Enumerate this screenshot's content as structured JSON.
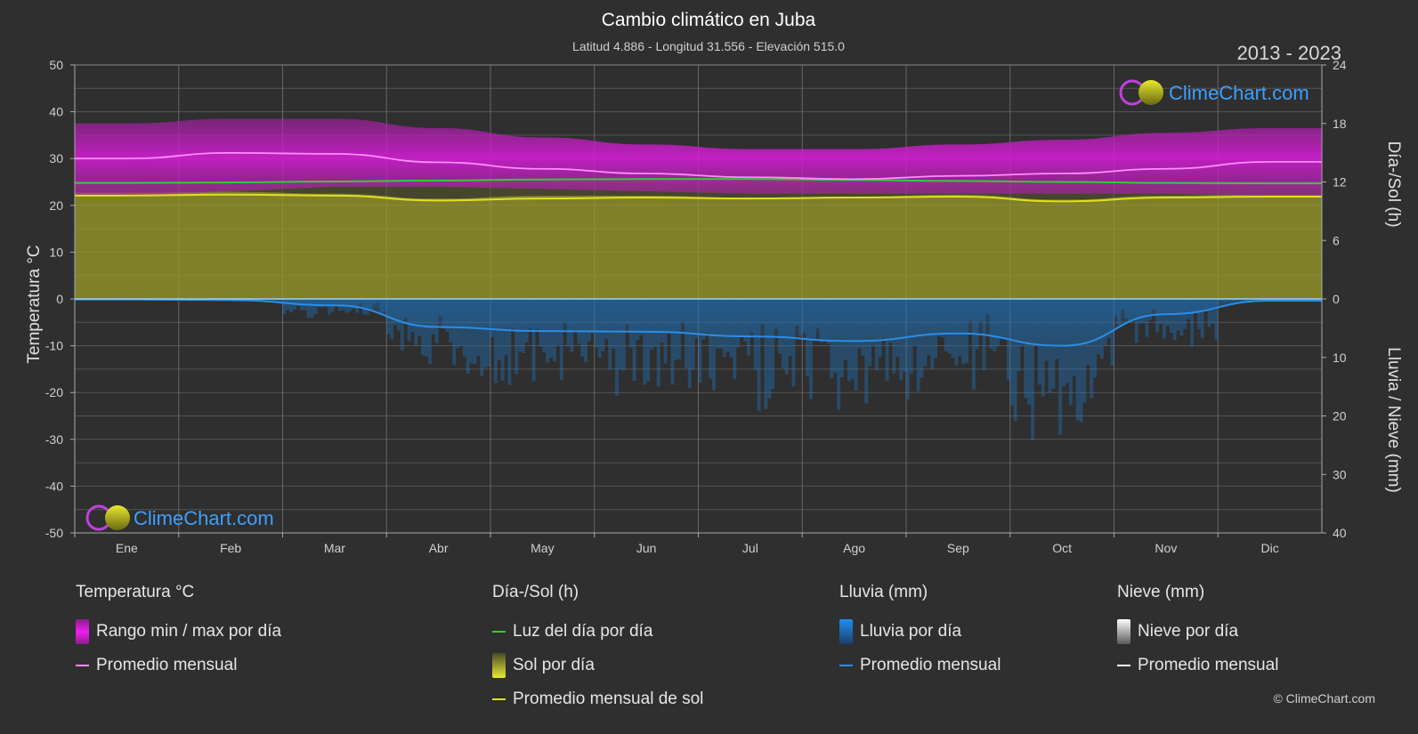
{
  "header": {
    "title": "Cambio climático en Juba",
    "subtitle": "Latitud 4.886 - Longitud 31.556 - Elevación 515.0",
    "year_range": "2013 - 2023"
  },
  "watermark": {
    "text": "ClimeChart.com"
  },
  "copyright": "© ClimeChart.com",
  "chart_data": {
    "type": "area",
    "months": [
      "Ene",
      "Feb",
      "Mar",
      "Abr",
      "May",
      "Jun",
      "Jul",
      "Ago",
      "Sep",
      "Oct",
      "Nov",
      "Dic"
    ],
    "left_axis": {
      "label": "Temperatura °C",
      "ticks": [
        50,
        40,
        30,
        20,
        10,
        0,
        -10,
        -20,
        -30,
        -40,
        -50
      ],
      "range": [
        -50,
        50
      ]
    },
    "right_axis_top": {
      "label": "Día-/Sol (h)",
      "ticks": [
        24,
        18,
        12,
        6,
        0
      ],
      "range": [
        0,
        24
      ]
    },
    "right_axis_bottom": {
      "label": "Lluvia / Nieve (mm)",
      "ticks": [
        0,
        10,
        20,
        30,
        40
      ],
      "range": [
        0,
        40
      ]
    },
    "series": [
      {
        "key": "temp_max_daily",
        "values": [
          37.5,
          38.5,
          38.5,
          36.5,
          34.5,
          33.0,
          32.0,
          32.0,
          33.0,
          34.0,
          35.5,
          36.5
        ]
      },
      {
        "key": "temp_min_daily",
        "values": [
          22.0,
          23.0,
          24.0,
          24.0,
          23.5,
          23.0,
          22.5,
          22.5,
          22.5,
          22.5,
          22.5,
          22.0
        ]
      },
      {
        "key": "temp_monthly_mean",
        "values": [
          30.0,
          31.2,
          31.0,
          29.2,
          27.8,
          26.8,
          26.0,
          25.6,
          26.3,
          26.8,
          27.8,
          29.3
        ]
      },
      {
        "key": "daylight_hours",
        "values": [
          11.9,
          11.95,
          12.05,
          12.15,
          12.25,
          12.3,
          12.3,
          12.2,
          12.1,
          12.0,
          11.9,
          11.85
        ]
      },
      {
        "key": "sunshine_daily",
        "values": [
          10.9,
          11.0,
          10.8,
          10.3,
          10.6,
          10.6,
          10.4,
          10.5,
          10.7,
          10.2,
          10.6,
          10.7
        ]
      },
      {
        "key": "sunshine_monthly_mean",
        "values": [
          10.6,
          10.7,
          10.6,
          10.1,
          10.3,
          10.4,
          10.3,
          10.4,
          10.5,
          10.0,
          10.4,
          10.5
        ]
      },
      {
        "key": "rain_monthly_mean",
        "values": [
          0.1,
          0.2,
          1.1,
          4.8,
          5.5,
          5.6,
          6.4,
          7.2,
          5.9,
          8.0,
          2.6,
          0.3
        ]
      },
      {
        "key": "snow_monthly_mean",
        "values": [
          0,
          0,
          0,
          0,
          0,
          0,
          0,
          0,
          0,
          0,
          0,
          0
        ]
      }
    ]
  },
  "legend": {
    "temperature": {
      "heading": "Temperatura °C",
      "range_label": "Rango min / max por día",
      "mean_label": "Promedio mensual"
    },
    "sun": {
      "heading": "Día-/Sol (h)",
      "daylight_label": "Luz del día por día",
      "sun_label": "Sol por día",
      "sun_mean_label": "Promedio mensual de sol"
    },
    "rain": {
      "heading": "Lluvia (mm)",
      "rain_label": "Lluvia por día",
      "mean_label": "Promedio mensual"
    },
    "snow": {
      "heading": "Nieve (mm)",
      "snow_label": "Nieve por día",
      "mean_label": "Promedio mensual"
    }
  },
  "colors": {
    "temp_band": "#c81ec8",
    "temp_mean": "#ff8cff",
    "daylight": "#33cc33",
    "sun_band": "#a0a02a",
    "sun_mean": "#e0e020",
    "rain": "#1e78c8",
    "rain_mean": "#2a8ee8",
    "snow_mean": "#ffffff",
    "accent_text": "#3aa0ff"
  }
}
